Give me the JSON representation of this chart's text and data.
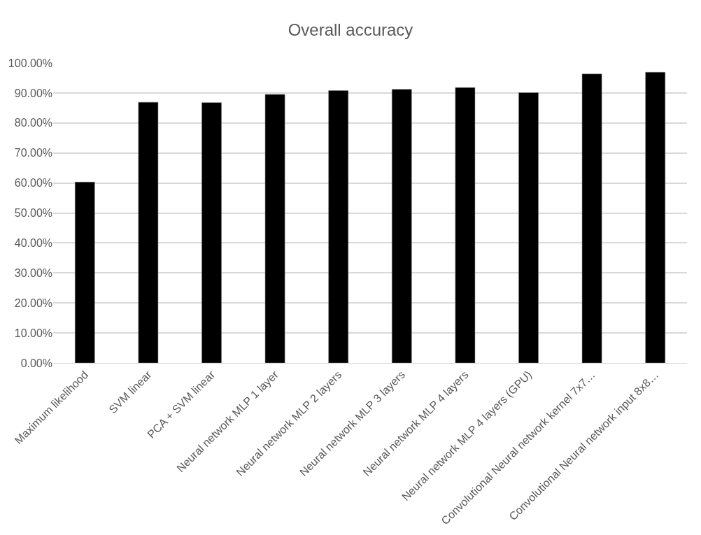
{
  "chart_data": {
    "type": "bar",
    "title": "Overall accuracy",
    "categories": [
      "Maximum likelihood",
      "SVM linear",
      "PCA + SVM linear",
      "Neural network MLP 1 layer",
      "Neural network MLP 2 layers",
      "Neural network MLP 3 layers",
      "Neural network MLP 4 layers",
      "Neural network MLP 4 layers (GPU)",
      "Convolutional Neural network kernel 7x7…",
      "Convolutional Neural network input 8x8…"
    ],
    "values": [
      60.3,
      86.9,
      86.8,
      89.5,
      90.8,
      91.2,
      91.8,
      90.1,
      96.3,
      96.9
    ],
    "color": "#000000",
    "ylim": [
      0,
      100
    ],
    "yticks": [
      {
        "value": 0,
        "label": "0.00%"
      },
      {
        "value": 10,
        "label": "10.00%"
      },
      {
        "value": 20,
        "label": "20.00%"
      },
      {
        "value": 30,
        "label": "30.00%"
      },
      {
        "value": 40,
        "label": "40.00%"
      },
      {
        "value": 50,
        "label": "50.00%"
      },
      {
        "value": 60,
        "label": "60.00%"
      },
      {
        "value": 70,
        "label": "70.00%"
      },
      {
        "value": 80,
        "label": "80.00%"
      },
      {
        "value": 90,
        "label": "90.00%"
      },
      {
        "value": 100,
        "label": "100.00%"
      }
    ],
    "grid": "y"
  }
}
